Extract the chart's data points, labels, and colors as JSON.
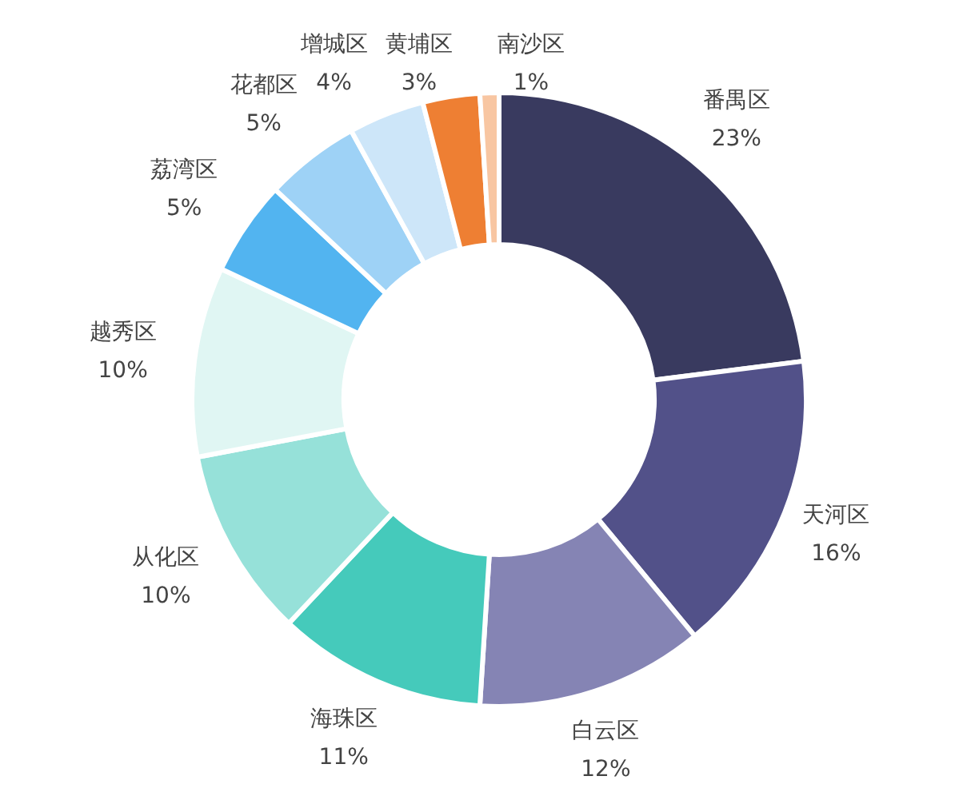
{
  "chart_data": {
    "type": "donut",
    "categories": [
      "番禺区",
      "天河区",
      "白云区",
      "海珠区",
      "从化区",
      "越秀区",
      "荔湾区",
      "花都区",
      "增城区",
      "黄埔区",
      "南沙区"
    ],
    "values": [
      23,
      16,
      12,
      11,
      10,
      10,
      5,
      5,
      4,
      3,
      1
    ],
    "value_labels": [
      "23%",
      "16%",
      "12%",
      "11%",
      "10%",
      "10%",
      "5%",
      "5%",
      "4%",
      "3%",
      "1%"
    ],
    "colors": [
      "#393a5f",
      "#525189",
      "#8584b4",
      "#45cabb",
      "#96e1d9",
      "#e0f6f3",
      "#52b4f0",
      "#9ed2f6",
      "#cde6f9",
      "#ee7f33",
      "#f8c6a2"
    ],
    "legend": false
  }
}
